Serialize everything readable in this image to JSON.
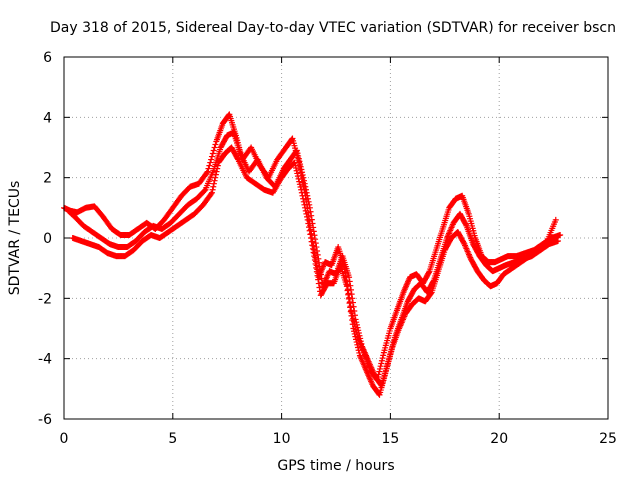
{
  "chart_data": {
    "type": "scatter",
    "title": "Day 318 of 2015, Sidereal Day-to-day VTEC variation (SDTVAR) for receiver bscn",
    "xlabel": "GPS time / hours",
    "ylabel": "SDTVAR / TECUs",
    "xlim": [
      0,
      25
    ],
    "ylim": [
      -6,
      6
    ],
    "xticks": [
      0,
      5,
      10,
      15,
      20,
      25
    ],
    "yticks": [
      -6,
      -4,
      -2,
      0,
      2,
      4,
      6
    ],
    "grid": true,
    "marker": "+",
    "color": "#ff0000",
    "series": [
      {
        "x": [
          0.0,
          0.3,
          0.6,
          1.0,
          1.4,
          1.8,
          2.2,
          2.6,
          3.0,
          3.4,
          3.8,
          4.2,
          4.6,
          5.0,
          5.4,
          5.8,
          6.2,
          6.6,
          7.0,
          7.3,
          7.6,
          7.9,
          8.2,
          8.6,
          9.0,
          9.4,
          9.8,
          10.2,
          10.5,
          10.8,
          11.1,
          11.4,
          11.7,
          12.0,
          12.3,
          12.6,
          12.9,
          13.2,
          13.5,
          13.8,
          14.1,
          14.4,
          14.7,
          15.0,
          15.3,
          15.6,
          15.9,
          16.2,
          16.5,
          16.8,
          17.1,
          17.4,
          17.7,
          18.0,
          18.3,
          18.6,
          18.9,
          19.2,
          19.5,
          19.8,
          20.1,
          20.4,
          20.8,
          21.2,
          21.6,
          22.0,
          22.4,
          22.8
        ],
        "y": [
          1.0,
          0.9,
          0.85,
          1.0,
          1.05,
          0.7,
          0.3,
          0.1,
          0.1,
          0.3,
          0.5,
          0.3,
          0.6,
          1.0,
          1.4,
          1.7,
          1.8,
          2.2,
          3.2,
          3.8,
          4.1,
          3.4,
          2.6,
          3.0,
          2.4,
          2.0,
          2.6,
          3.0,
          3.3,
          2.5,
          1.4,
          0.0,
          -1.3,
          -0.8,
          -0.9,
          -0.3,
          -1.0,
          -2.4,
          -3.3,
          -3.8,
          -4.4,
          -4.7,
          -3.8,
          -3.0,
          -2.4,
          -1.8,
          -1.3,
          -1.2,
          -1.5,
          -1.1,
          -0.4,
          0.3,
          1.0,
          1.3,
          1.4,
          0.8,
          0.0,
          -0.6,
          -0.8,
          -0.8,
          -0.7,
          -0.6,
          -0.6,
          -0.5,
          -0.4,
          -0.2,
          0.0,
          0.1
        ]
      },
      {
        "x": [
          0.2,
          0.5,
          0.9,
          1.3,
          1.7,
          2.1,
          2.5,
          2.9,
          3.3,
          3.7,
          4.1,
          4.5,
          4.9,
          5.3,
          5.7,
          6.1,
          6.5,
          6.9,
          7.2,
          7.5,
          7.8,
          8.1,
          8.5,
          8.9,
          9.3,
          9.7,
          10.1,
          10.4,
          10.7,
          11.0,
          11.3,
          11.6,
          11.9,
          12.2,
          12.5,
          12.8,
          13.1,
          13.4,
          13.7,
          14.0,
          14.3,
          14.6,
          14.9,
          15.2,
          15.5,
          15.8,
          16.1,
          16.4,
          16.7,
          17.0,
          17.3,
          17.6,
          17.9,
          18.2,
          18.5,
          18.8,
          19.1,
          19.4,
          19.7,
          20.0,
          20.3,
          20.7,
          21.1,
          21.5,
          21.9,
          22.3,
          22.7
        ],
        "y": [
          0.9,
          0.7,
          0.4,
          0.2,
          0.0,
          -0.2,
          -0.3,
          -0.3,
          -0.1,
          0.2,
          0.4,
          0.3,
          0.5,
          0.8,
          1.1,
          1.3,
          1.6,
          2.3,
          3.0,
          3.4,
          3.5,
          2.8,
          2.2,
          2.6,
          2.0,
          1.7,
          2.3,
          2.6,
          2.9,
          2.0,
          1.0,
          -0.3,
          -1.6,
          -1.1,
          -1.2,
          -0.6,
          -1.3,
          -2.7,
          -3.6,
          -4.1,
          -4.6,
          -4.9,
          -4.1,
          -3.3,
          -2.7,
          -2.1,
          -1.7,
          -1.5,
          -1.8,
          -1.4,
          -0.7,
          0.0,
          0.5,
          0.8,
          0.4,
          -0.2,
          -0.6,
          -0.9,
          -1.1,
          -1.0,
          -0.9,
          -0.8,
          -0.7,
          -0.6,
          -0.4,
          -0.2,
          -0.1
        ]
      },
      {
        "x": [
          0.4,
          0.8,
          1.2,
          1.6,
          2.0,
          2.4,
          2.8,
          3.2,
          3.6,
          4.0,
          4.4,
          4.8,
          5.2,
          5.6,
          6.0,
          6.4,
          6.8,
          7.1,
          7.4,
          7.7,
          8.0,
          8.4,
          8.8,
          9.2,
          9.6,
          10.0,
          10.3,
          10.6,
          10.9,
          11.2,
          11.5,
          11.8,
          12.1,
          12.4,
          12.7,
          13.0,
          13.3,
          13.6,
          13.9,
          14.2,
          14.5,
          14.8,
          15.1,
          15.4,
          15.7,
          16.0,
          16.3,
          16.6,
          16.9,
          17.2,
          17.5,
          17.8,
          18.1,
          18.4,
          18.7,
          19.0,
          19.3,
          19.6,
          19.9,
          20.2,
          20.6,
          21.0,
          21.4,
          21.8,
          22.2,
          22.6
        ],
        "y": [
          0.0,
          -0.1,
          -0.2,
          -0.3,
          -0.5,
          -0.6,
          -0.6,
          -0.4,
          -0.1,
          0.1,
          0.0,
          0.2,
          0.4,
          0.6,
          0.8,
          1.1,
          1.5,
          2.5,
          2.8,
          3.0,
          2.6,
          2.0,
          1.8,
          1.6,
          1.5,
          2.0,
          2.3,
          2.5,
          1.6,
          0.6,
          -0.6,
          -1.9,
          -1.5,
          -1.5,
          -0.9,
          -1.6,
          -3.0,
          -3.9,
          -4.4,
          -4.9,
          -5.2,
          -4.4,
          -3.6,
          -3.0,
          -2.5,
          -2.2,
          -2.0,
          -2.1,
          -1.8,
          -1.1,
          -0.4,
          0.0,
          0.2,
          -0.2,
          -0.7,
          -1.1,
          -1.4,
          -1.6,
          -1.5,
          -1.2,
          -1.0,
          -0.8,
          -0.6,
          -0.4,
          -0.1,
          0.6
        ]
      }
    ]
  }
}
